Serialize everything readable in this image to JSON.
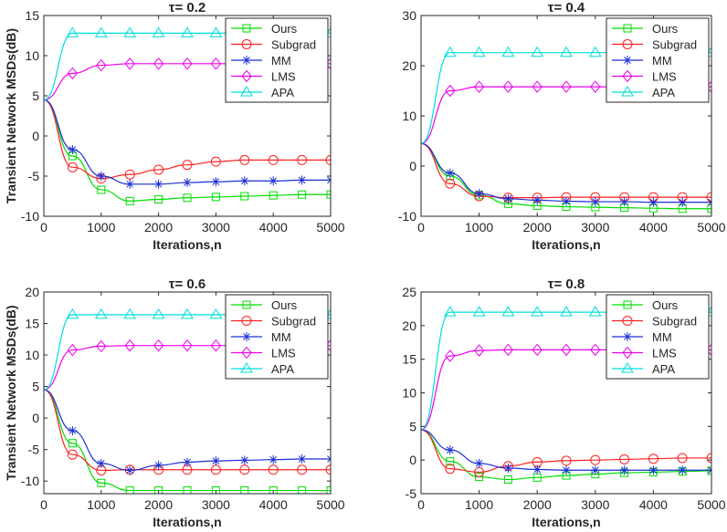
{
  "figure": {
    "background": "#ffffff"
  },
  "series_styles": {
    "Ours": {
      "color": "#00dd00",
      "marker": "square"
    },
    "Subgrad": {
      "color": "#ff2020",
      "marker": "circle"
    },
    "MM": {
      "color": "#1c2fd6",
      "marker": "asterisk"
    },
    "LMS": {
      "color": "#ee00ee",
      "marker": "diamond"
    },
    "APA": {
      "color": "#00dddd",
      "marker": "triangle"
    }
  },
  "chart_data": [
    {
      "type": "line",
      "title": "τ= 0.2",
      "xlabel": "Iterations,n",
      "ylabel": "Transient Network MSDs(dB)",
      "xlim": [
        0,
        5000
      ],
      "ylim": [
        -10,
        15
      ],
      "xticks": [
        0,
        1000,
        2000,
        3000,
        4000,
        5000
      ],
      "yticks": [
        -10,
        -5,
        0,
        5,
        10,
        15
      ],
      "legend": "top-right",
      "x": [
        0,
        500,
        1000,
        1500,
        2000,
        2500,
        3000,
        3500,
        4000,
        4500,
        5000
      ],
      "series": [
        {
          "name": "Ours",
          "values": [
            4.5,
            -2.5,
            -6.7,
            -8.1,
            -7.9,
            -7.7,
            -7.6,
            -7.5,
            -7.4,
            -7.3,
            -7.3
          ]
        },
        {
          "name": "Subgrad",
          "values": [
            4.5,
            -3.9,
            -5.3,
            -4.8,
            -4.2,
            -3.6,
            -3.2,
            -3.0,
            -3.0,
            -3.0,
            -3.0
          ]
        },
        {
          "name": "MM",
          "values": [
            4.5,
            -1.7,
            -5.0,
            -6.0,
            -6.0,
            -5.8,
            -5.7,
            -5.6,
            -5.6,
            -5.5,
            -5.5
          ]
        },
        {
          "name": "LMS",
          "values": [
            4.5,
            7.8,
            8.8,
            9.0,
            9.0,
            9.0,
            9.0,
            9.0,
            9.0,
            9.0,
            9.0
          ]
        },
        {
          "name": "APA",
          "values": [
            4.5,
            12.8,
            12.8,
            12.8,
            12.8,
            12.8,
            12.8,
            12.8,
            12.8,
            12.8,
            12.8
          ]
        }
      ]
    },
    {
      "type": "line",
      "title": "τ= 0.4",
      "xlabel": "Iterations,n",
      "ylabel": "",
      "xlim": [
        0,
        5000
      ],
      "ylim": [
        -10,
        30
      ],
      "xticks": [
        0,
        1000,
        2000,
        3000,
        4000,
        5000
      ],
      "yticks": [
        -10,
        0,
        10,
        20,
        30
      ],
      "legend": "top-right",
      "x": [
        0,
        500,
        1000,
        1500,
        2000,
        2500,
        3000,
        3500,
        4000,
        4500,
        5000
      ],
      "series": [
        {
          "name": "Ours",
          "values": [
            4.5,
            -2.0,
            -5.8,
            -7.5,
            -7.9,
            -8.1,
            -8.2,
            -8.3,
            -8.4,
            -8.5,
            -8.5
          ]
        },
        {
          "name": "Subgrad",
          "values": [
            4.5,
            -3.5,
            -6.0,
            -6.3,
            -6.3,
            -6.2,
            -6.2,
            -6.2,
            -6.2,
            -6.2,
            -6.2
          ]
        },
        {
          "name": "MM",
          "values": [
            4.5,
            -1.4,
            -5.5,
            -6.5,
            -6.8,
            -7.0,
            -7.1,
            -7.1,
            -7.2,
            -7.2,
            -7.2
          ]
        },
        {
          "name": "LMS",
          "values": [
            4.5,
            15.0,
            15.8,
            15.8,
            15.8,
            15.8,
            15.8,
            15.8,
            15.8,
            15.8,
            15.8
          ]
        },
        {
          "name": "APA",
          "values": [
            4.5,
            22.6,
            22.6,
            22.6,
            22.6,
            22.6,
            22.6,
            22.6,
            22.6,
            22.6,
            22.6
          ]
        }
      ]
    },
    {
      "type": "line",
      "title": "τ= 0.6",
      "xlabel": "Iterations,n",
      "ylabel": "Transient Network MSDs(dB)",
      "xlim": [
        0,
        5000
      ],
      "ylim": [
        -12,
        20
      ],
      "xticks": [
        0,
        1000,
        2000,
        3000,
        4000,
        5000
      ],
      "yticks": [
        -10,
        -5,
        0,
        5,
        10,
        15,
        20
      ],
      "legend": "top-right",
      "x": [
        0,
        500,
        1000,
        1500,
        2000,
        2500,
        3000,
        3500,
        4000,
        4500,
        5000
      ],
      "series": [
        {
          "name": "Ours",
          "values": [
            4.5,
            -4.0,
            -10.3,
            -11.5,
            -11.5,
            -11.5,
            -11.5,
            -11.5,
            -11.5,
            -11.5,
            -11.5
          ]
        },
        {
          "name": "Subgrad",
          "values": [
            4.5,
            -5.8,
            -8.3,
            -8.2,
            -8.2,
            -8.2,
            -8.2,
            -8.2,
            -8.2,
            -8.2,
            -8.2
          ]
        },
        {
          "name": "MM",
          "values": [
            4.5,
            -2.0,
            -7.2,
            -8.3,
            -7.5,
            -7.0,
            -6.8,
            -6.7,
            -6.6,
            -6.5,
            -6.5
          ]
        },
        {
          "name": "LMS",
          "values": [
            4.5,
            10.8,
            11.4,
            11.5,
            11.5,
            11.5,
            11.5,
            11.5,
            11.5,
            11.5,
            11.5
          ]
        },
        {
          "name": "APA",
          "values": [
            4.5,
            16.4,
            16.4,
            16.4,
            16.4,
            16.4,
            16.4,
            16.4,
            16.4,
            16.4,
            16.4
          ]
        }
      ]
    },
    {
      "type": "line",
      "title": "τ= 0.8",
      "xlabel": "Iterations,n",
      "ylabel": "",
      "xlim": [
        0,
        5000
      ],
      "ylim": [
        -5,
        25
      ],
      "xticks": [
        0,
        1000,
        2000,
        3000,
        4000,
        5000
      ],
      "yticks": [
        -5,
        0,
        5,
        10,
        15,
        20,
        25
      ],
      "legend": "top-right",
      "x": [
        0,
        500,
        1000,
        1500,
        2000,
        2500,
        3000,
        3500,
        4000,
        4500,
        5000
      ],
      "series": [
        {
          "name": "Ours",
          "values": [
            4.5,
            -0.2,
            -2.5,
            -2.9,
            -2.6,
            -2.3,
            -2.1,
            -1.9,
            -1.8,
            -1.7,
            -1.6
          ]
        },
        {
          "name": "Subgrad",
          "values": [
            4.5,
            -1.3,
            -1.8,
            -0.9,
            -0.3,
            -0.1,
            0.0,
            0.1,
            0.2,
            0.3,
            0.3
          ]
        },
        {
          "name": "MM",
          "values": [
            4.5,
            1.5,
            -0.5,
            -1.2,
            -1.4,
            -1.5,
            -1.5,
            -1.5,
            -1.5,
            -1.5,
            -1.5
          ]
        },
        {
          "name": "LMS",
          "values": [
            4.5,
            15.5,
            16.3,
            16.4,
            16.4,
            16.4,
            16.4,
            16.4,
            16.4,
            16.4,
            16.4
          ]
        },
        {
          "name": "APA",
          "values": [
            4.5,
            22.0,
            22.0,
            22.0,
            22.0,
            22.0,
            22.0,
            22.0,
            22.0,
            22.0,
            22.0
          ]
        }
      ]
    }
  ]
}
